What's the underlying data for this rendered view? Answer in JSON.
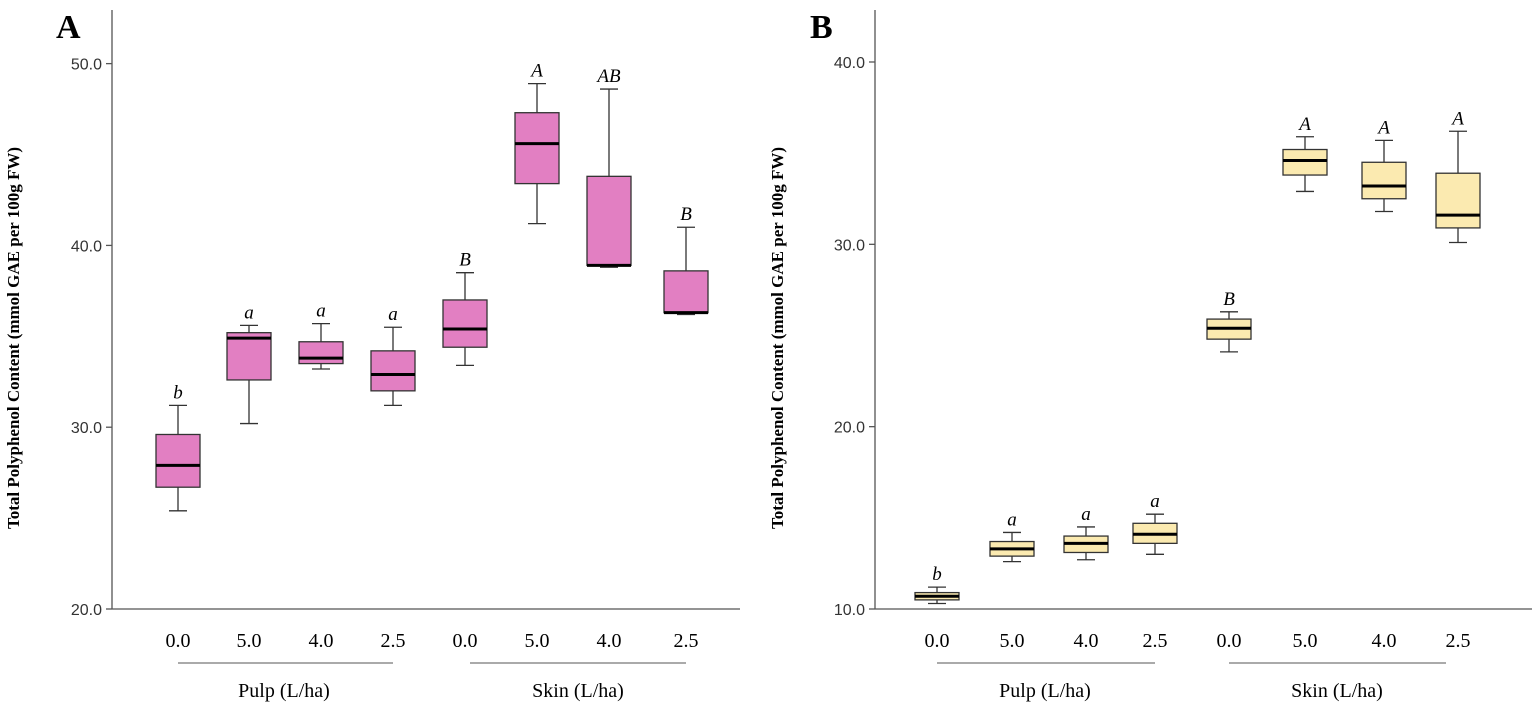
{
  "chart_data": [
    {
      "type": "box",
      "panel_label": "A",
      "ylabel": "Total Polyphenol Content (mmol GAE per 100g FW)",
      "ylim": [
        20,
        53.5
      ],
      "yticks": [
        "20.0",
        "30.0",
        "40.0",
        "50.0"
      ],
      "ytick_values": [
        20,
        30,
        40,
        50
      ],
      "categories": [
        "0.0",
        "5.0",
        "4.0",
        "2.5",
        "0.0",
        "5.0",
        "4.0",
        "2.5"
      ],
      "groups": [
        {
          "label": "Pulp (L/ha)",
          "indices": [
            0,
            1,
            2,
            3
          ]
        },
        {
          "label": "Skin (L/ha)",
          "indices": [
            4,
            5,
            6,
            7
          ]
        }
      ],
      "fill": "#e27fc2",
      "series": [
        {
          "whisker_low": 25.4,
          "q1": 26.7,
          "median": 27.9,
          "q3": 29.6,
          "whisker_high": 31.2,
          "letter": "b"
        },
        {
          "whisker_low": 30.2,
          "q1": 32.6,
          "median": 34.9,
          "q3": 35.2,
          "whisker_high": 35.6,
          "letter": "a"
        },
        {
          "whisker_low": 33.2,
          "q1": 33.5,
          "median": 33.8,
          "q3": 34.7,
          "whisker_high": 35.7,
          "letter": "a"
        },
        {
          "whisker_low": 31.2,
          "q1": 32.0,
          "median": 32.9,
          "q3": 34.2,
          "whisker_high": 35.5,
          "letter": "a"
        },
        {
          "whisker_low": 33.4,
          "q1": 34.4,
          "median": 35.4,
          "q3": 37.0,
          "whisker_high": 38.5,
          "letter": "B"
        },
        {
          "whisker_low": 41.2,
          "q1": 43.4,
          "median": 45.6,
          "q3": 47.3,
          "whisker_high": 48.9,
          "letter": "A"
        },
        {
          "whisker_low": 38.8,
          "q1": 38.9,
          "median": 38.9,
          "q3": 43.8,
          "whisker_high": 48.6,
          "letter": "AB"
        },
        {
          "whisker_low": 36.2,
          "q1": 36.3,
          "median": 36.3,
          "q3": 38.6,
          "whisker_high": 41.0,
          "letter": "B"
        }
      ]
    },
    {
      "type": "box",
      "panel_label": "B",
      "ylabel": "Total Polyphenol Content (mmol GAE per 100g FW)",
      "ylim": [
        10,
        43.4
      ],
      "yticks": [
        "10.0",
        "20.0",
        "30.0",
        "40.0"
      ],
      "ytick_values": [
        10,
        20,
        30,
        40
      ],
      "categories": [
        "0.0",
        "5.0",
        "4.0",
        "2.5",
        "0.0",
        "5.0",
        "4.0",
        "2.5"
      ],
      "groups": [
        {
          "label": "Pulp (L/ha)",
          "indices": [
            0,
            1,
            2,
            3
          ]
        },
        {
          "label": "Skin (L/ha)",
          "indices": [
            4,
            5,
            6,
            7
          ]
        }
      ],
      "fill": "#fbeab0",
      "series": [
        {
          "whisker_low": 10.3,
          "q1": 10.5,
          "median": 10.7,
          "q3": 10.9,
          "whisker_high": 11.2,
          "letter": "b"
        },
        {
          "whisker_low": 12.6,
          "q1": 12.9,
          "median": 13.3,
          "q3": 13.7,
          "whisker_high": 14.2,
          "letter": "a"
        },
        {
          "whisker_low": 12.7,
          "q1": 13.1,
          "median": 13.6,
          "q3": 14.0,
          "whisker_high": 14.5,
          "letter": "a"
        },
        {
          "whisker_low": 13.0,
          "q1": 13.6,
          "median": 14.1,
          "q3": 14.7,
          "whisker_high": 15.2,
          "letter": "a"
        },
        {
          "whisker_low": 24.1,
          "q1": 24.8,
          "median": 25.4,
          "q3": 25.9,
          "whisker_high": 26.3,
          "letter": "B"
        },
        {
          "whisker_low": 32.9,
          "q1": 33.8,
          "median": 34.6,
          "q3": 35.2,
          "whisker_high": 35.9,
          "letter": "A"
        },
        {
          "whisker_low": 31.8,
          "q1": 32.5,
          "median": 33.2,
          "q3": 34.5,
          "whisker_high": 35.7,
          "letter": "A"
        },
        {
          "whisker_low": 30.1,
          "q1": 30.9,
          "median": 31.6,
          "q3": 33.9,
          "whisker_high": 36.2,
          "letter": "A"
        }
      ]
    }
  ]
}
